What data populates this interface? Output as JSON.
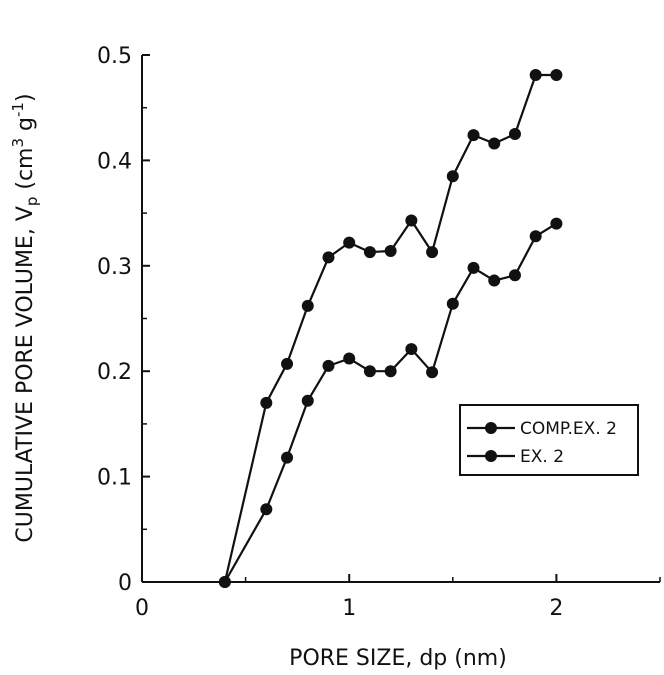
{
  "chart_data": {
    "type": "line",
    "xlabel": "PORE SIZE, dp (nm)",
    "ylabel": {
      "prefix": "CUMULATIVE PORE VOLUME, V",
      "subscript": "p",
      "unit_open": " (cm",
      "unit_sup1": "3",
      "unit_mid": " g",
      "unit_sup2": "-1",
      "unit_close": ")"
    },
    "xlim": [
      0,
      2.5
    ],
    "ylim": [
      0,
      0.5
    ],
    "xticks": [
      0,
      1,
      2
    ],
    "xtick_labels": [
      "0",
      "1",
      "2"
    ],
    "yticks": [
      0,
      0.1,
      0.2,
      0.3,
      0.4,
      0.5
    ],
    "ytick_labels": [
      "0",
      "0.1",
      "0.2",
      "0.3",
      "0.4",
      "0.5"
    ],
    "grid": false,
    "legend_position": "right-middle",
    "series": [
      {
        "name": "COMP.EX. 2",
        "x": [
          0.4,
          0.6,
          0.7,
          0.8,
          0.9,
          1.0,
          1.1,
          1.2,
          1.3,
          1.4,
          1.5,
          1.6,
          1.7,
          1.8,
          1.9,
          2.0
        ],
        "y": [
          0,
          0.17,
          0.207,
          0.262,
          0.308,
          0.322,
          0.313,
          0.314,
          0.343,
          0.313,
          0.385,
          0.424,
          0.416,
          0.425,
          0.481,
          0.481
        ]
      },
      {
        "name": "EX. 2",
        "x": [
          0.4,
          0.6,
          0.7,
          0.8,
          0.9,
          1.0,
          1.1,
          1.2,
          1.3,
          1.4,
          1.5,
          1.6,
          1.7,
          1.8,
          1.9,
          2.0
        ],
        "y": [
          0,
          0.069,
          0.118,
          0.172,
          0.205,
          0.212,
          0.2,
          0.2,
          0.221,
          0.199,
          0.264,
          0.298,
          0.286,
          0.291,
          0.328,
          0.34
        ]
      }
    ]
  }
}
